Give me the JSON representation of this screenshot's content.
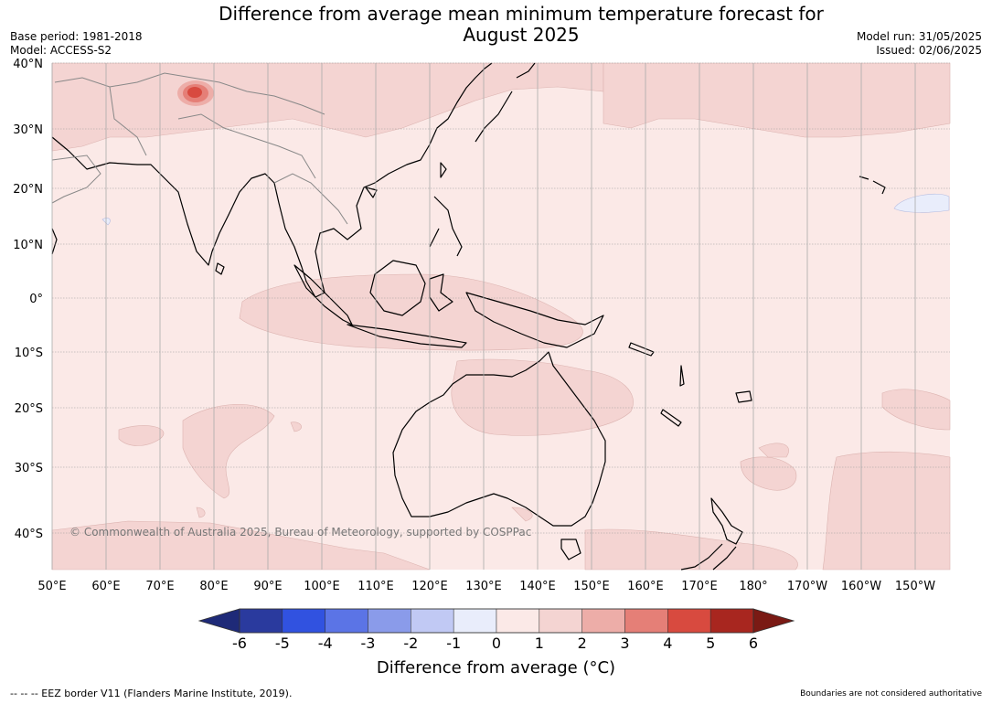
{
  "title_line1": "Difference from average mean minimum temperature forecast for",
  "title_line2": "August 2025",
  "base_period": "Base period: 1981-2018",
  "model": "Model: ACCESS-S2",
  "model_run": "Model run: 31/05/2025",
  "issued": "Issued: 02/06/2025",
  "lat_labels": [
    "40°N",
    "30°N",
    "20°N",
    "10°N",
    "0°",
    "10°S",
    "20°S",
    "30°S",
    "40°S"
  ],
  "lon_labels": [
    "50°E",
    "60°E",
    "70°E",
    "80°E",
    "90°E",
    "100°E",
    "110°E",
    "120°E",
    "130°E",
    "140°E",
    "150°E",
    "160°E",
    "170°E",
    "180°",
    "170°W",
    "160°W",
    "150°W"
  ],
  "copyright": "© Commonwealth of Australia 2025, Bureau of Meteorology, supported by COSPPac",
  "colorbar": {
    "ticks": [
      "-6",
      "-5",
      "-4",
      "-3",
      "-2",
      "-1",
      "0",
      "1",
      "2",
      "3",
      "4",
      "5",
      "6"
    ],
    "colors": [
      "#2a3a9e",
      "#3152e0",
      "#5b74e6",
      "#8a9bea",
      "#c1c9f4",
      "#e9edfb",
      "#fbe9e7",
      "#f4d4d2",
      "#edada8",
      "#e57f77",
      "#d84a3f",
      "#a8261f"
    ],
    "under_color": "#1e2a78",
    "over_color": "#7a1a14",
    "title": "Difference from average (°C)"
  },
  "footer_left": "--  --  -- EEZ border V11 (Flanders Marine Institute, 2019).",
  "footer_right": "Boundaries are not considered authoritative"
}
